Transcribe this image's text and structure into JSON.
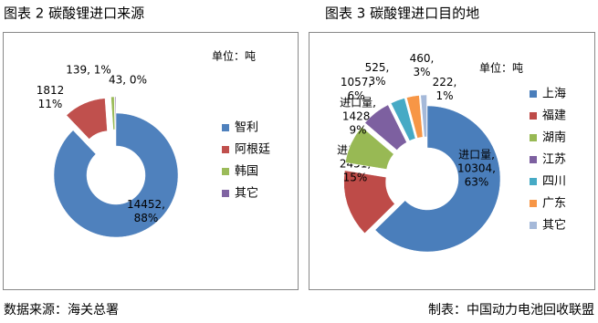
{
  "chart_data": [
    {
      "type": "donut",
      "title": "图表 2  碳酸锂进口来源",
      "unit": "单位：吨",
      "categories": [
        "智利",
        "阿根廷",
        "韩国",
        "其它"
      ],
      "values": [
        14452,
        1812,
        139,
        43
      ],
      "value_labels": [
        [
          "14452,",
          "88%"
        ],
        [
          "1812",
          "11%"
        ],
        [
          "139, 1%"
        ],
        [
          "43, 0%"
        ]
      ],
      "colors": [
        "#4f81bd",
        "#c0504d",
        "#9bbb59",
        "#8064a2"
      ]
    },
    {
      "type": "donut",
      "title": "图表 3 碳酸锂进口目的地",
      "unit": "单位：吨",
      "categories": [
        "上海",
        "福建",
        "湖南",
        "江苏",
        "四川",
        "广东",
        "其它"
      ],
      "values": [
        10304,
        2451,
        1428,
        1057,
        525,
        460,
        222
      ],
      "value_labels": [
        [
          "进口量,",
          "10304,",
          "63%"
        ],
        [
          "进口量,",
          "2451,",
          "15%"
        ],
        [
          "进口量,",
          "1428,",
          "9%"
        ],
        [
          "1057,",
          "6%"
        ],
        [
          "525,",
          "3%"
        ],
        [
          "460,",
          "3%"
        ],
        [
          "222,",
          "1%"
        ]
      ],
      "colors": [
        "#4a7ebb",
        "#be4b48",
        "#98b954",
        "#7d60a0",
        "#46aac5",
        "#f79646",
        "#a5b9d9"
      ]
    }
  ],
  "footer": {
    "source": "数据来源：海关总署",
    "credit": "制表：中国动力电池回收联盟"
  }
}
